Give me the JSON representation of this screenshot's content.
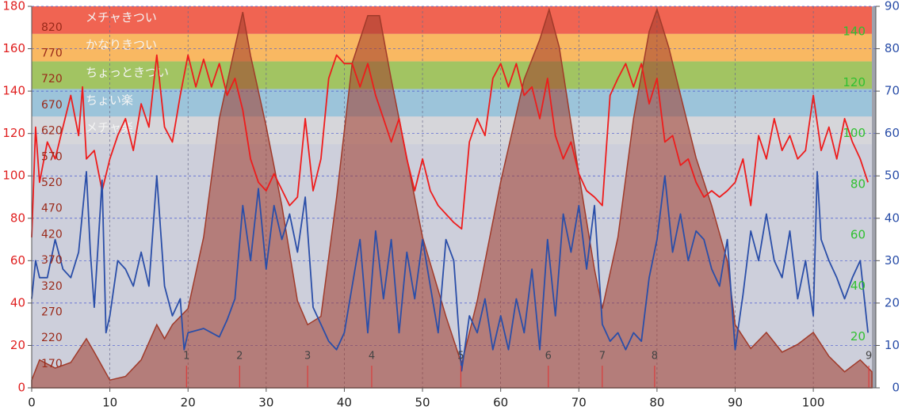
{
  "chart_data": {
    "type": "line",
    "xlim": [
      0,
      108
    ],
    "xticks": [
      0,
      10,
      20,
      30,
      40,
      50,
      60,
      70,
      80,
      90,
      100
    ],
    "ylim": [
      0,
      180
    ],
    "yticks": [
      0,
      20,
      40,
      60,
      80,
      100,
      120,
      140,
      160,
      180
    ],
    "y2lim": [
      0,
      90
    ],
    "y2ticks": [
      0,
      10,
      20,
      30,
      40,
      50,
      60,
      70,
      80,
      90
    ],
    "y3lim": [
      124,
      861
    ],
    "y3ticks": [
      170,
      220,
      270,
      320,
      370,
      420,
      470,
      520,
      570,
      620,
      670,
      720,
      770,
      820
    ],
    "y4lim": [
      0,
      150
    ],
    "y4ticks": [
      20,
      40,
      60,
      80,
      100,
      120,
      140
    ],
    "grid": true,
    "zones": [
      {
        "label": "メチャきつい",
        "range": [
          167,
          180
        ],
        "color": "#f06452"
      },
      {
        "label": "かなりきつい",
        "range": [
          154,
          167
        ],
        "color": "#f9b862"
      },
      {
        "label": "ちょっときつい",
        "range": [
          141,
          154
        ],
        "color": "#a2c462"
      },
      {
        "label": "ちょい楽",
        "range": [
          128,
          141
        ],
        "color": "#9cc4da"
      },
      {
        "label": "メチャ楽",
        "range": [
          115,
          128
        ],
        "color": "#d6d6da"
      }
    ],
    "laps": {
      "x": [
        19.8,
        26.6,
        35.3,
        43.5,
        54.9,
        66.1,
        73,
        79.7,
        107.1
      ],
      "labels": [
        "1",
        "2",
        "3",
        "4",
        "5",
        "6",
        "7",
        "8",
        "9"
      ]
    },
    "series": [
      {
        "color": "#a03a2a",
        "axis": "y3",
        "area": true,
        "x": [
          0,
          1,
          3,
          5,
          7,
          8,
          10,
          12,
          14,
          16,
          17,
          18,
          20,
          22,
          24,
          26,
          27,
          28,
          30,
          32,
          34,
          35.3,
          37,
          39,
          41,
          43,
          44.5,
          46,
          48,
          50,
          53,
          55,
          57,
          60,
          63,
          65,
          66.2,
          67.5,
          70,
          72,
          73,
          75,
          77,
          79,
          80,
          81.5,
          83,
          85,
          87,
          89,
          90,
          92,
          94,
          96,
          98,
          100,
          102,
          104,
          106,
          107.5
        ],
        "values": [
          139,
          178,
          162,
          173,
          219,
          193,
          139,
          146,
          178,
          246,
          219,
          246,
          277,
          415,
          644,
          782,
          850,
          766,
          629,
          476,
          292,
          246,
          262,
          491,
          751,
          843,
          843,
          720,
          568,
          415,
          262,
          170,
          292,
          522,
          720,
          797,
          855,
          782,
          537,
          353,
          277,
          415,
          644,
          812,
          855,
          782,
          690,
          568,
          476,
          369,
          246,
          200,
          231,
          193,
          208,
          231,
          185,
          155,
          178,
          155
        ]
      },
      {
        "color": "#ee1c1c",
        "axis": "y",
        "x": [
          0,
          0.5,
          1,
          2,
          3,
          4,
          5,
          6,
          6.5,
          7,
          8,
          9,
          10,
          11,
          12,
          13,
          14,
          15,
          16,
          17,
          18,
          19,
          20,
          21,
          22,
          23,
          24,
          25,
          26,
          27,
          28,
          29,
          30,
          31,
          33,
          34,
          35,
          36,
          37,
          38,
          39,
          40,
          41,
          42,
          43,
          44,
          45,
          46,
          47,
          48,
          49,
          50,
          51,
          52,
          53,
          54,
          55,
          56,
          57,
          58,
          59,
          60,
          61,
          62,
          63,
          64,
          65,
          66,
          67,
          68,
          69,
          70,
          71,
          72,
          73,
          74,
          75,
          76,
          77,
          78,
          79,
          80,
          81,
          82,
          83,
          84,
          85,
          86,
          87,
          88,
          89,
          90,
          91,
          92,
          93,
          94,
          95,
          96,
          97,
          98,
          99,
          100,
          101,
          102,
          103,
          104,
          105,
          106,
          107
        ],
        "values": [
          71,
          123,
          97,
          116,
          108,
          123,
          138,
          119,
          142,
          108,
          112,
          93,
          108,
          119,
          127,
          112,
          134,
          123,
          157,
          123,
          116,
          138,
          157,
          142,
          155,
          142,
          153,
          138,
          146,
          131,
          108,
          97,
          93,
          101,
          86,
          90,
          127,
          93,
          108,
          146,
          157,
          153,
          153,
          142,
          153,
          138,
          127,
          116,
          127,
          108,
          93,
          108,
          93,
          86,
          82,
          78,
          75,
          116,
          127,
          119,
          146,
          153,
          142,
          153,
          138,
          142,
          127,
          146,
          119,
          108,
          116,
          101,
          93,
          90,
          86,
          138,
          146,
          153,
          142,
          153,
          134,
          146,
          116,
          119,
          105,
          108,
          97,
          90,
          93,
          90,
          93,
          97,
          108,
          86,
          119,
          108,
          127,
          112,
          119,
          108,
          112,
          138,
          112,
          123,
          108,
          127,
          116,
          108,
          97
        ]
      },
      {
        "color": "#2a4ea8",
        "axis": "y2",
        "x": [
          0,
          0.5,
          1,
          2,
          3,
          4,
          5,
          6,
          7,
          7.5,
          8,
          9,
          9.5,
          10,
          11,
          12,
          13,
          14,
          15,
          16,
          17,
          18,
          19,
          19.5,
          20,
          22,
          24,
          25,
          26,
          27,
          28,
          29,
          30,
          31,
          32,
          33,
          34,
          35,
          36,
          37,
          38,
          39,
          40,
          41,
          42,
          43,
          44,
          45,
          46,
          47,
          48,
          49,
          50,
          51,
          52,
          53,
          54,
          55,
          56,
          57,
          58,
          59,
          60,
          61,
          62,
          63,
          64,
          65,
          66,
          67,
          68,
          69,
          70,
          71,
          72,
          73,
          74,
          75,
          76,
          77,
          78,
          79,
          80,
          81,
          82,
          83,
          84,
          85,
          86,
          87,
          88,
          89,
          90,
          91,
          92,
          93,
          94,
          95,
          96,
          97,
          98,
          99,
          100,
          100.5,
          101,
          102,
          103,
          104,
          105,
          106,
          107
        ],
        "values": [
          21,
          30,
          26,
          26,
          35,
          28,
          26,
          32,
          51,
          32,
          19,
          49,
          13,
          17,
          30,
          28,
          24,
          32,
          24,
          50,
          24,
          17,
          21,
          9,
          13,
          14,
          12,
          16,
          21,
          43,
          30,
          47,
          28,
          43,
          35,
          41,
          32,
          45,
          19,
          15,
          11,
          9,
          13,
          24,
          35,
          13,
          37,
          21,
          35,
          13,
          32,
          21,
          35,
          24,
          13,
          35,
          30,
          4,
          17,
          13,
          21,
          9,
          17,
          9,
          21,
          13,
          28,
          9,
          35,
          17,
          41,
          32,
          43,
          28,
          43,
          15,
          11,
          13,
          9,
          13,
          11,
          26,
          35,
          50,
          32,
          41,
          30,
          37,
          35,
          28,
          24,
          35,
          9,
          22,
          37,
          30,
          41,
          30,
          26,
          37,
          21,
          30,
          17,
          51,
          35,
          30,
          26,
          21,
          26,
          30,
          13
        ]
      }
    ]
  }
}
